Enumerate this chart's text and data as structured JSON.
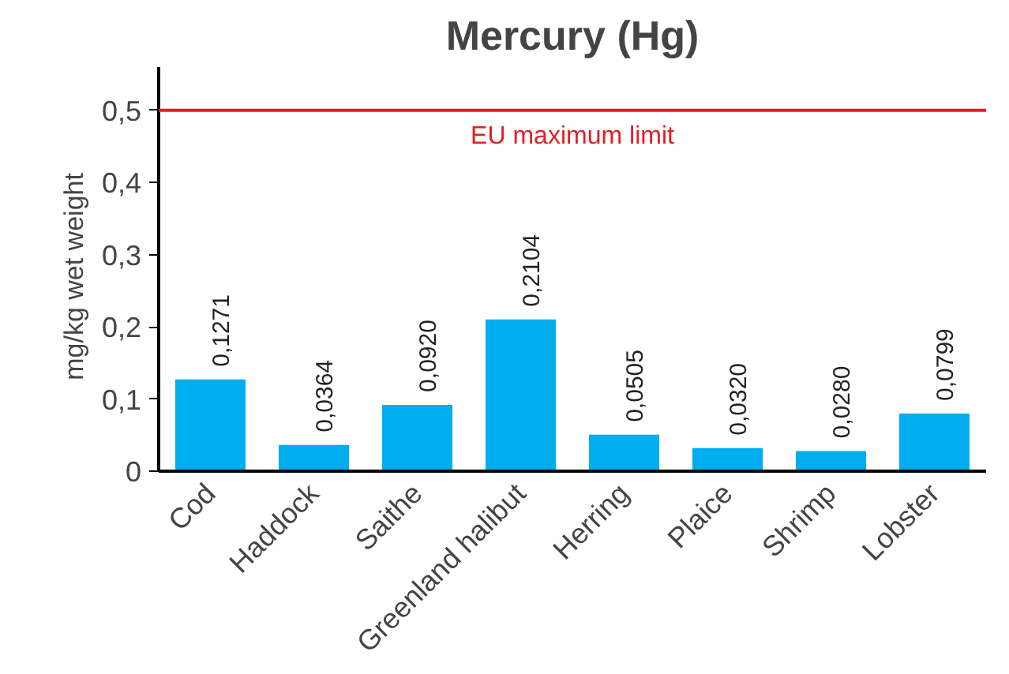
{
  "chart_data": {
    "type": "bar",
    "title": "Mercury (Hg)",
    "ylabel": "mg/kg   wet weight",
    "categories": [
      "Cod",
      "Haddock",
      "Saithe",
      "Greenland halibut",
      "Herring",
      "Plaice",
      "Shrimp",
      "Lobster"
    ],
    "values": [
      0.1271,
      0.0364,
      0.092,
      0.2104,
      0.0505,
      0.032,
      0.028,
      0.0799
    ],
    "value_labels": [
      "0,1271",
      "0,0364",
      "0,0920",
      "0,2104",
      "0,0505",
      "0,0320",
      "0,0280",
      "0,0799"
    ],
    "color": "#00aeef",
    "ylim": [
      0,
      0.56
    ],
    "yticks": [
      0,
      {
        "value": 0.1,
        "label": "0,1"
      },
      {
        "value": 0.2,
        "label": "0,2"
      },
      {
        "value": 0.3,
        "label": "0,3"
      },
      {
        "value": 0.4,
        "label": "0,4"
      },
      {
        "value": 0.5,
        "label": "0,5"
      }
    ],
    "ref_lines": [
      {
        "axis": "y",
        "value": 0.5,
        "label": "EU maximum limit",
        "color": "#e31e24"
      }
    ],
    "grid": false
  }
}
